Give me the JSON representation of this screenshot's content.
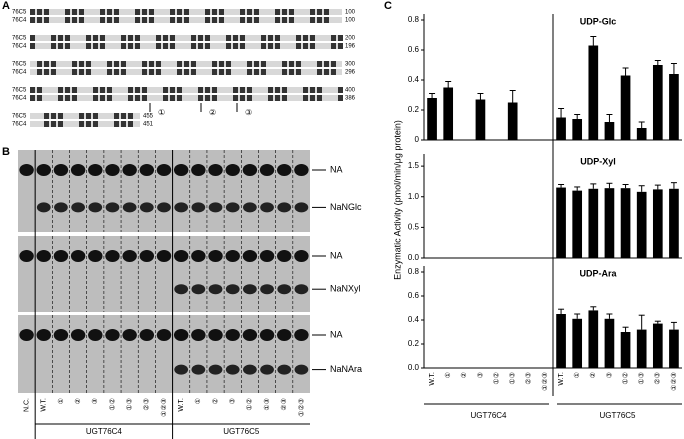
{
  "panels": [
    "A",
    "B",
    "C"
  ],
  "alignment": {
    "rows": [
      {
        "name1": "76C5",
        "end1": 100,
        "name2": "76C4",
        "end2": 100
      },
      {
        "name1": "76C5",
        "end1": 200,
        "name2": "76C4",
        "end2": 196
      },
      {
        "name1": "76C5",
        "end1": 300,
        "name2": "76C4",
        "end2": 296
      },
      {
        "name1": "76C5",
        "end1": 400,
        "name2": "76C4",
        "end2": 386
      },
      {
        "name1": "76C5",
        "end1": 455,
        "name2": "76C4",
        "end2": 451
      }
    ],
    "sites": [
      "①",
      "②",
      "③"
    ]
  },
  "gel": {
    "sections": [
      {
        "top": "NA",
        "bottom": "NaNGlc"
      },
      {
        "top": "NA",
        "bottom": "NaNXyl"
      },
      {
        "top": "NA",
        "bottom": "NaNAra"
      }
    ],
    "lanes": [
      "N.C.",
      "W.T.",
      "①",
      "②",
      "③",
      "①②",
      "①③",
      "②③",
      "①②③",
      "W.T.",
      "①",
      "②",
      "③",
      "①②",
      "①③",
      "②③",
      "①②③"
    ],
    "groups": [
      "UGT76C4",
      "UGT76C5"
    ]
  },
  "chart_data": [
    {
      "type": "bar",
      "title": "UDP-Glc",
      "color": "#000000",
      "values": [
        0.28,
        0.35,
        0,
        0.27,
        0,
        0.25,
        0,
        0,
        0.15,
        0.14,
        0.63,
        0.12,
        0.43,
        0.08,
        0.5,
        0.44
      ],
      "errors": [
        0.03,
        0.04,
        0,
        0.04,
        0,
        0.08,
        0,
        0,
        0.06,
        0.03,
        0.06,
        0.05,
        0.05,
        0.04,
        0.03,
        0.07
      ],
      "ylim": [
        0,
        0.8
      ],
      "yticks": [
        0,
        0.2,
        0.4,
        0.6,
        0.8
      ]
    },
    {
      "type": "bar",
      "title": "UDP-Xyl",
      "color": "#000000",
      "ylabel": "Enzymatic Activity (pmol/min/μg protein)",
      "values": [
        0,
        0,
        0,
        0,
        0,
        0,
        0,
        0,
        1.15,
        1.1,
        1.13,
        1.14,
        1.14,
        1.08,
        1.12,
        1.13
      ],
      "errors": [
        0,
        0,
        0,
        0,
        0,
        0,
        0,
        0,
        0.05,
        0.06,
        0.08,
        0.08,
        0.06,
        0.1,
        0.07,
        0.1
      ],
      "ylim": [
        0,
        1.6
      ],
      "yticks": [
        {
          "value": 0,
          "label": "0.0"
        },
        0.5,
        {
          "value": 1,
          "label": "1.0"
        },
        1.5
      ]
    },
    {
      "type": "bar",
      "title": "UDP-Ara",
      "color": "#000000",
      "categories": [
        "W.T.",
        "①",
        "②",
        "③",
        "①②",
        "①③",
        "②③",
        "①②③",
        "W.T.",
        "①",
        "②",
        "③",
        "①②",
        "①③",
        "②③",
        "①②③"
      ],
      "group_labels": [
        "UGT76C4",
        "UGT76C5"
      ],
      "values": [
        0,
        0,
        0,
        0,
        0,
        0,
        0,
        0,
        0.45,
        0.41,
        0.48,
        0.41,
        0.3,
        0.32,
        0.37,
        0.32
      ],
      "errors": [
        0,
        0,
        0,
        0,
        0,
        0,
        0,
        0,
        0.04,
        0.04,
        0.03,
        0.04,
        0.04,
        0.12,
        0.02,
        0.06
      ],
      "ylim": [
        0,
        0.8
      ],
      "yticks": [
        {
          "value": 0,
          "label": "0.0"
        },
        0.2,
        0.4,
        0.6,
        0.8
      ]
    }
  ]
}
